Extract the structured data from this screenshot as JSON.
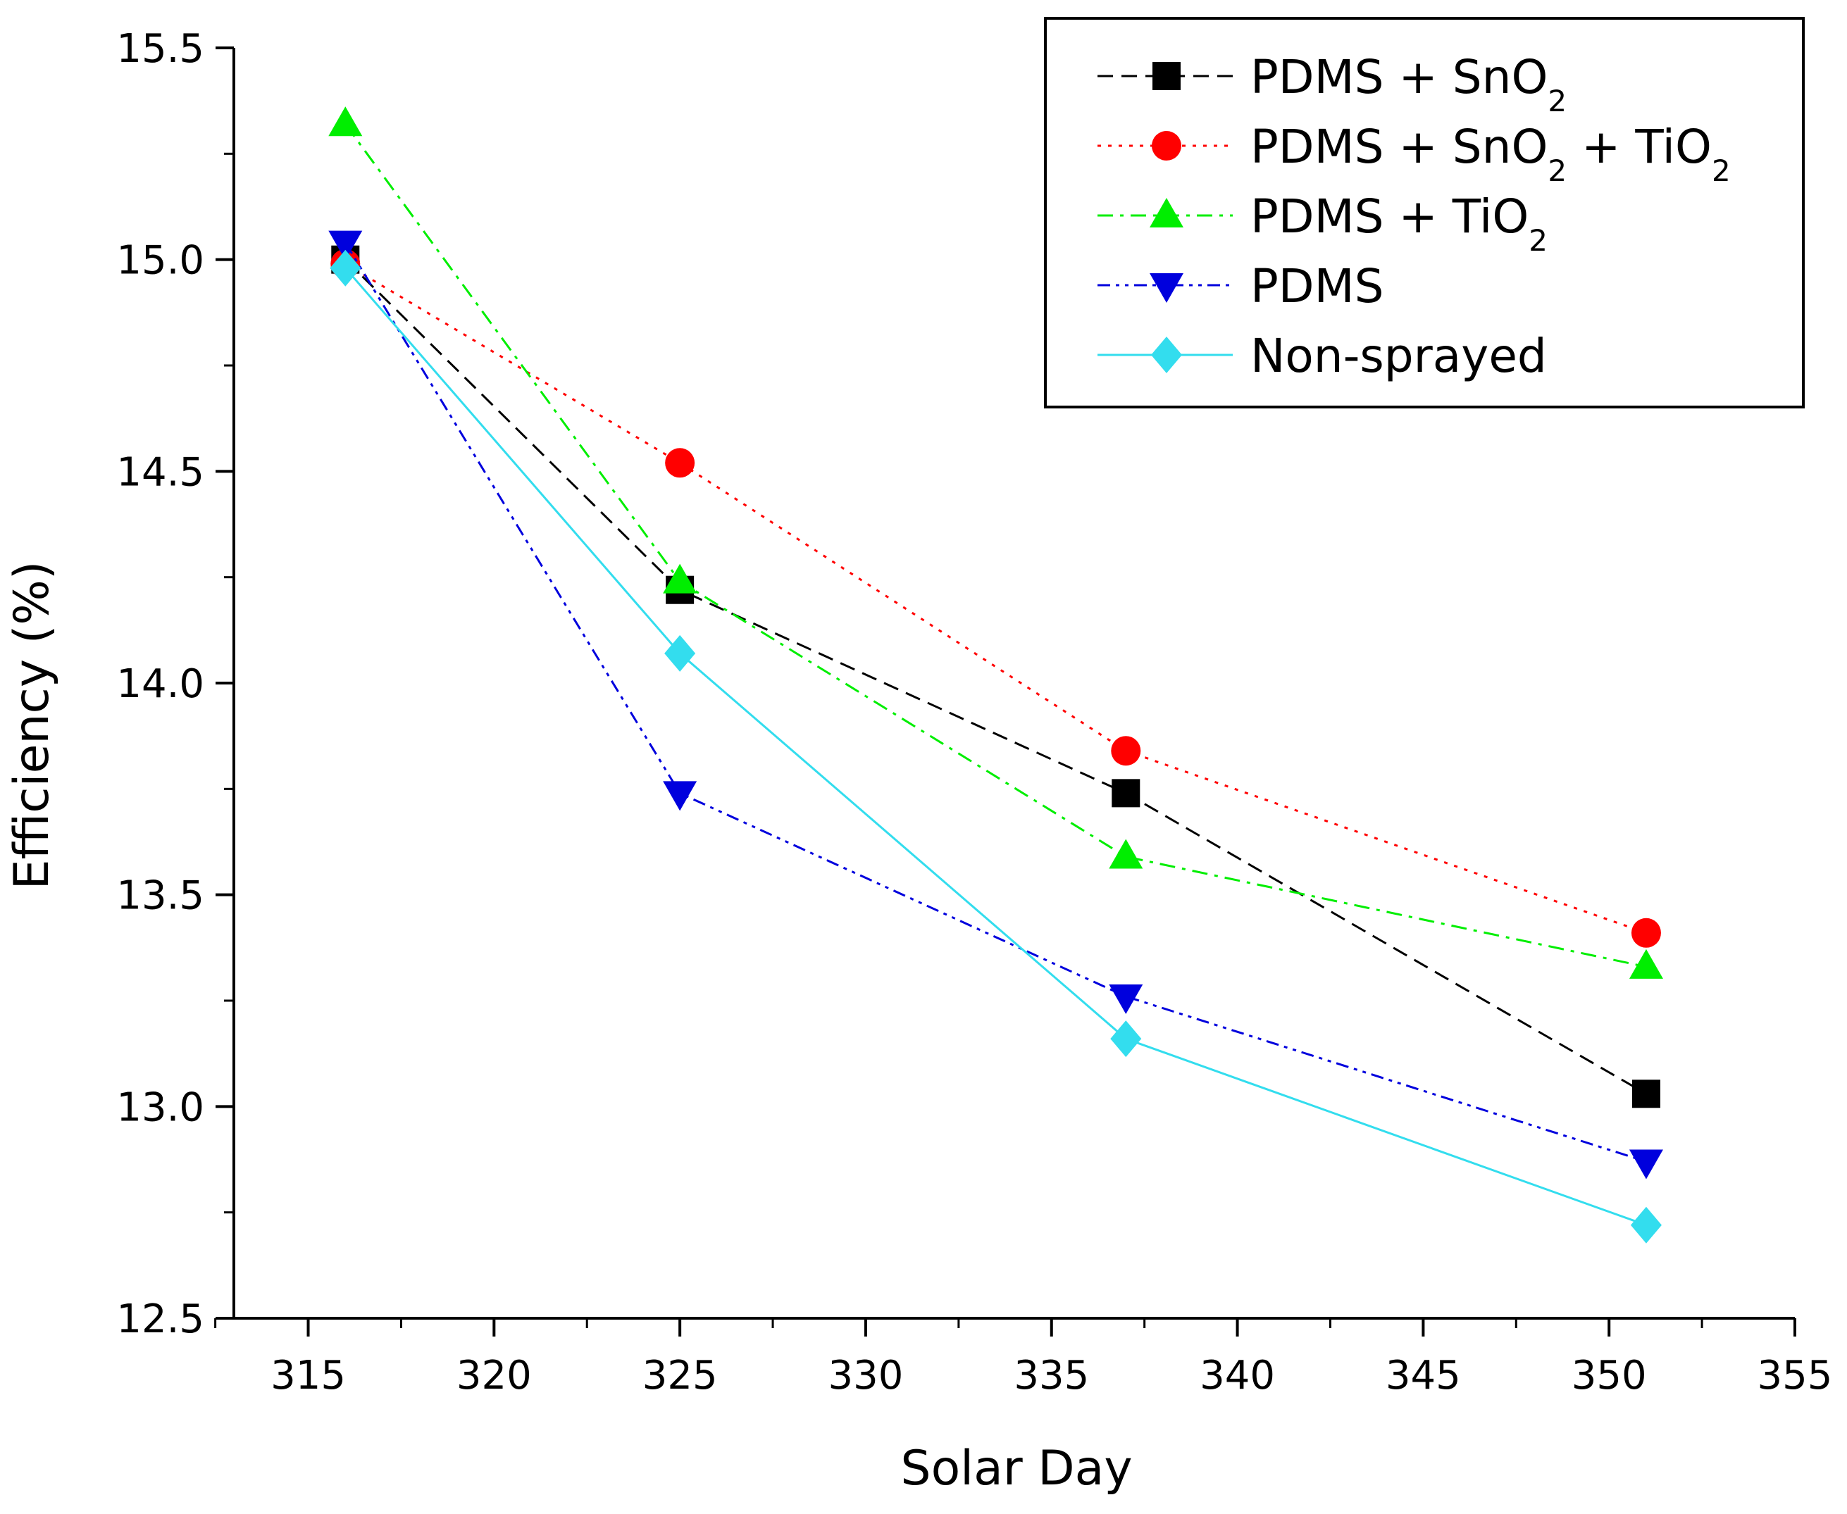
{
  "chart_data": {
    "type": "line",
    "title": "",
    "xlabel": "Solar Day",
    "ylabel": "Efficiency (%)",
    "xlim": [
      313,
      355
    ],
    "ylim": [
      12.5,
      15.5
    ],
    "xticks": [
      315,
      320,
      325,
      330,
      335,
      340,
      345,
      350,
      355
    ],
    "yticks": [
      12.5,
      13.0,
      13.5,
      14.0,
      14.5,
      15.0,
      15.5
    ],
    "xtick_labels": [
      "315",
      "320",
      "325",
      "330",
      "335",
      "340",
      "345",
      "350",
      "355"
    ],
    "ytick_labels": [
      "12.5",
      "13.0",
      "13.5",
      "14.0",
      "14.5",
      "15.0",
      "15.5"
    ],
    "grid": false,
    "legend_position": "top-right",
    "x": [
      316,
      325,
      337,
      351
    ],
    "series": [
      {
        "name": "PDMS + SnO2",
        "label_main": "PDMS + SnO",
        "label_sub": "2",
        "label_tail": "",
        "label_sub2": "",
        "color": "#000000",
        "marker": "square",
        "dash": "dash",
        "values": [
          15.0,
          14.22,
          13.74,
          13.03
        ]
      },
      {
        "name": "PDMS + SnO2 + TiO2",
        "label_main": "PDMS + SnO",
        "label_sub": "2",
        "label_tail": " + TiO",
        "label_sub2": "2",
        "color": "#ff0000",
        "marker": "circle",
        "dash": "dot",
        "values": [
          14.99,
          14.52,
          13.84,
          13.41
        ]
      },
      {
        "name": "PDMS + TiO2",
        "label_main": "PDMS + TiO",
        "label_sub": "2",
        "label_tail": "",
        "label_sub2": "",
        "color": "#00ee00",
        "marker": "triangle-up",
        "dash": "dashdot",
        "values": [
          15.32,
          14.24,
          13.59,
          13.33
        ]
      },
      {
        "name": "PDMS",
        "label_main": "PDMS",
        "label_sub": "",
        "label_tail": "",
        "label_sub2": "",
        "color": "#0000dd",
        "marker": "triangle-down",
        "dash": "dashdotdot",
        "values": [
          15.04,
          13.74,
          13.26,
          12.87
        ]
      },
      {
        "name": "Non-sprayed",
        "label_main": "Non-sprayed",
        "label_sub": "",
        "label_tail": "",
        "label_sub2": "",
        "color": "#33ddee",
        "marker": "diamond",
        "dash": "solid",
        "values": [
          14.98,
          14.07,
          13.16,
          12.72
        ]
      }
    ]
  }
}
